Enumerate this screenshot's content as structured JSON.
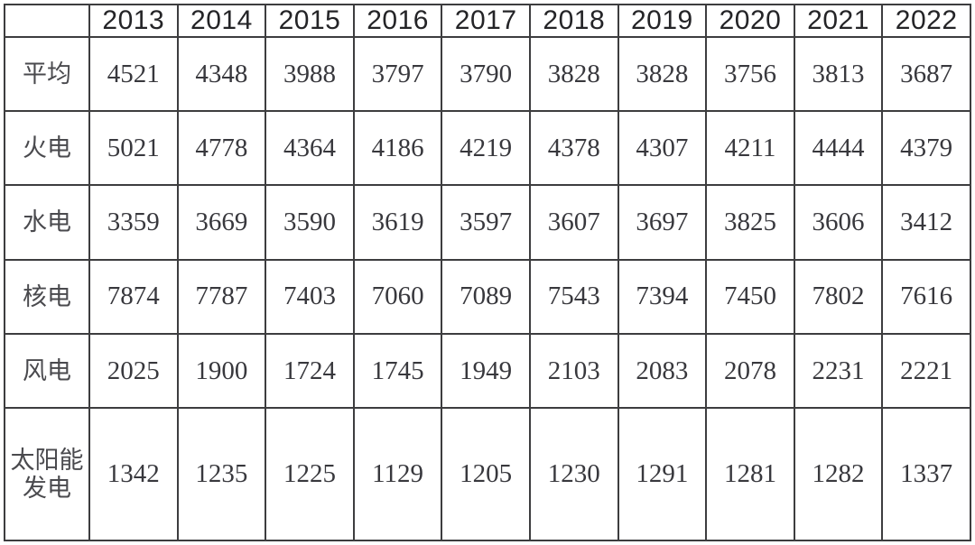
{
  "table": {
    "corner_label": "",
    "years": [
      "2013",
      "2014",
      "2015",
      "2016",
      "2017",
      "2018",
      "2019",
      "2020",
      "2021",
      "2022"
    ],
    "rows": [
      {
        "label": "平均",
        "values": [
          "4521",
          "4348",
          "3988",
          "3797",
          "3790",
          "3828",
          "3828",
          "3756",
          "3813",
          "3687"
        ]
      },
      {
        "label": "火电",
        "values": [
          "5021",
          "4778",
          "4364",
          "4186",
          "4219",
          "4378",
          "4307",
          "4211",
          "4444",
          "4379"
        ]
      },
      {
        "label": "水电",
        "values": [
          "3359",
          "3669",
          "3590",
          "3619",
          "3597",
          "3607",
          "3697",
          "3825",
          "3606",
          "3412"
        ]
      },
      {
        "label": "核电",
        "values": [
          "7874",
          "7787",
          "7403",
          "7060",
          "7089",
          "7543",
          "7394",
          "7450",
          "7802",
          "7616"
        ]
      },
      {
        "label": "风电",
        "values": [
          "2025",
          "1900",
          "1724",
          "1745",
          "1949",
          "2103",
          "2083",
          "2078",
          "2231",
          "2221"
        ]
      },
      {
        "label": "太阳能发电",
        "values": [
          "1342",
          "1235",
          "1225",
          "1129",
          "1205",
          "1230",
          "1291",
          "1281",
          "1282",
          "1337"
        ]
      }
    ]
  },
  "colors": {
    "border": "#3d3d3f",
    "header_text": "#242427",
    "cell_text": "#38383d",
    "background": "#ffffff"
  },
  "chart_data": {
    "type": "table",
    "title": "",
    "columns": [
      "2013",
      "2014",
      "2015",
      "2016",
      "2017",
      "2018",
      "2019",
      "2020",
      "2021",
      "2022"
    ],
    "series": [
      {
        "name": "平均",
        "values": [
          4521,
          4348,
          3988,
          3797,
          3790,
          3828,
          3828,
          3756,
          3813,
          3687
        ]
      },
      {
        "name": "火电",
        "values": [
          5021,
          4778,
          4364,
          4186,
          4219,
          4378,
          4307,
          4211,
          4444,
          4379
        ]
      },
      {
        "name": "水电",
        "values": [
          3359,
          3669,
          3590,
          3619,
          3597,
          3607,
          3697,
          3825,
          3606,
          3412
        ]
      },
      {
        "name": "核电",
        "values": [
          7874,
          7787,
          7403,
          7060,
          7089,
          7543,
          7394,
          7450,
          7802,
          7616
        ]
      },
      {
        "name": "风电",
        "values": [
          2025,
          1900,
          1724,
          1745,
          1949,
          2103,
          2083,
          2078,
          2231,
          2221
        ]
      },
      {
        "name": "太阳能发电",
        "values": [
          1342,
          1235,
          1225,
          1129,
          1205,
          1230,
          1291,
          1281,
          1282,
          1337
        ]
      }
    ]
  }
}
